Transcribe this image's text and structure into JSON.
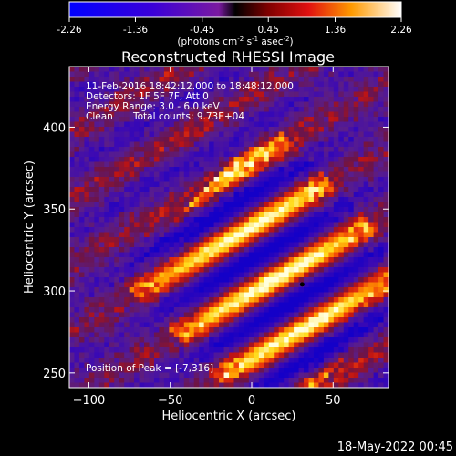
{
  "chart_data": {
    "type": "heatmap",
    "title": "Reconstructed RHESSI Image",
    "xlabel": "Heliocentric X (arcsec)",
    "ylabel": "Heliocentric Y (arcsec)",
    "xlim": [
      -112,
      84
    ],
    "ylim": [
      241,
      437
    ],
    "x_ticks": [
      -100,
      -50,
      0,
      50
    ],
    "y_ticks": [
      250,
      300,
      350,
      400
    ],
    "colorbar": {
      "min": -2.26,
      "max": 2.26,
      "ticks": [
        "-2.26",
        "-1.36",
        "-0.45",
        "0.45",
        "1.36",
        "2.26"
      ],
      "unit_main": "(photons cm",
      "unit_e1": "-2",
      "unit_mid": " s",
      "unit_e2": "-1",
      "unit_mid2": " asec",
      "unit_e3": "-2",
      "unit_end": ")"
    },
    "annotations": {
      "line1": "11-Feb-2016 18:42:12.000 to 18:48:12.000",
      "line2": "Detectors: 1F 5F 7F, Att 0",
      "line3": "Energy Range: 3.0 - 6.0 keV",
      "line4_a": "Clean",
      "line4_b": "Total counts: 9.73E+04",
      "peak": "Position of Peak = [-7,316]"
    },
    "peak": [
      -7,
      316
    ],
    "footer_date": "18-May-2022 00:45"
  }
}
